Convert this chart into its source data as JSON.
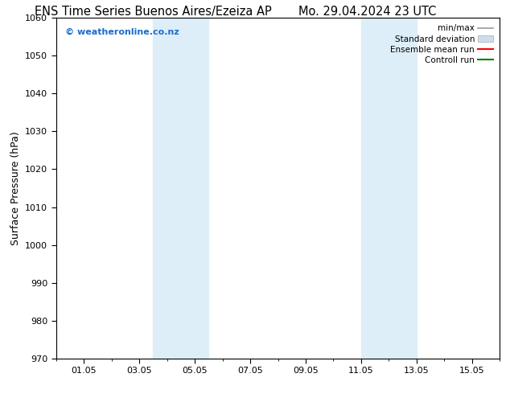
{
  "title_left": "ENS Time Series Buenos Aires/Ezeiza AP",
  "title_right": "Mo. 29.04.2024 23 UTC",
  "ylabel": "Surface Pressure (hPa)",
  "ylim": [
    970,
    1060
  ],
  "yticks": [
    970,
    980,
    990,
    1000,
    1010,
    1020,
    1030,
    1040,
    1050,
    1060
  ],
  "xlim": [
    0,
    16
  ],
  "xtick_labels": [
    "01.05",
    "03.05",
    "05.05",
    "07.05",
    "09.05",
    "11.05",
    "13.05",
    "15.05"
  ],
  "xtick_positions": [
    1,
    3,
    5,
    7,
    9,
    11,
    13,
    15
  ],
  "shaded_bands": [
    {
      "xmin": 3.5,
      "xmax": 5.5
    },
    {
      "xmin": 11.0,
      "xmax": 13.0
    }
  ],
  "shaded_color": "#ddeef8",
  "watermark_text": "© weatheronline.co.nz",
  "watermark_color": "#1a6ccc",
  "legend_items": [
    {
      "label": "min/max",
      "color": "#999999",
      "lw": 1.2
    },
    {
      "label": "Standard deviation",
      "color": "#ccddee",
      "lw": 6
    },
    {
      "label": "Ensemble mean run",
      "color": "red",
      "lw": 1.5
    },
    {
      "label": "Controll run",
      "color": "green",
      "lw": 1.5
    }
  ],
  "bg_color": "#ffffff",
  "plot_bg_color": "#ffffff",
  "spine_color": "#000000",
  "title_fontsize": 10.5,
  "label_fontsize": 9,
  "tick_fontsize": 8,
  "legend_fontsize": 7.5,
  "watermark_fontsize": 8
}
